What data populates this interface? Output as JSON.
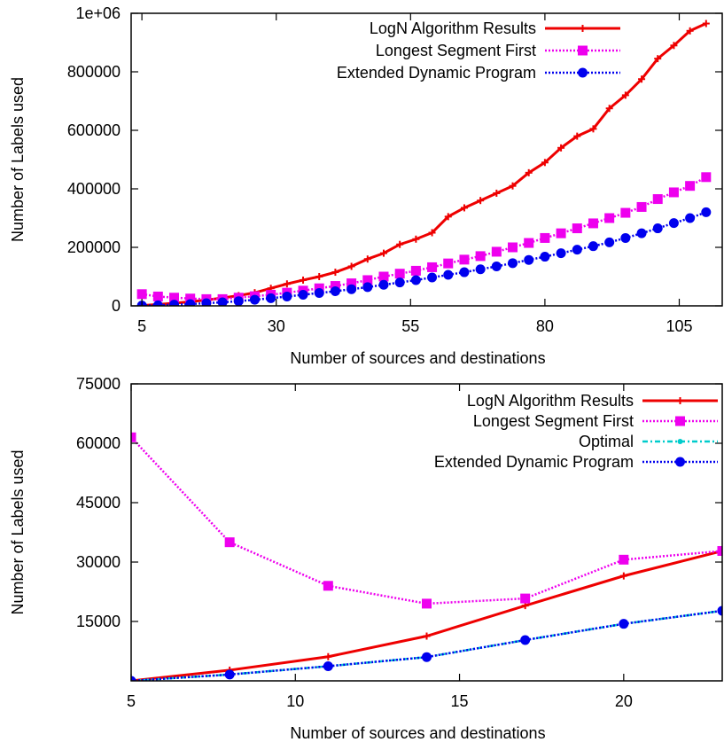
{
  "chart_data": [
    {
      "type": "line",
      "title": "",
      "xlabel": "Number of sources and destinations",
      "ylabel": "Number of Labels used",
      "xlim": [
        3,
        113
      ],
      "ylim": [
        0,
        1000000
      ],
      "xticks": [
        5,
        30,
        55,
        80,
        105
      ],
      "yticks": [
        0,
        200000,
        400000,
        600000,
        800000,
        1000000
      ],
      "ytick_labels": [
        "0",
        "200000",
        "400000",
        "600000",
        "800000",
        "1e+06"
      ],
      "grid": false,
      "legend_position": "top-right",
      "series": [
        {
          "name": "LogN Algorithm Results",
          "color": "#ee0000",
          "marker": "plus",
          "line": "solid",
          "x": [
            5,
            8,
            11,
            14,
            17,
            20,
            23,
            26,
            29,
            32,
            35,
            38,
            41,
            44,
            47,
            50,
            53,
            56,
            59,
            62,
            65,
            68,
            71,
            74,
            77,
            80,
            83,
            86,
            89,
            92,
            95,
            98,
            101,
            104,
            107,
            110
          ],
          "y": [
            1000,
            5000,
            9000,
            14000,
            20000,
            27000,
            35000,
            45000,
            60000,
            75000,
            88000,
            100000,
            115000,
            135000,
            160000,
            180000,
            210000,
            228000,
            250000,
            305000,
            335000,
            360000,
            385000,
            410000,
            455000,
            490000,
            540000,
            580000,
            605000,
            675000,
            720000,
            775000,
            845000,
            890000,
            940000,
            965000
          ]
        },
        {
          "name": "Longest Segment First",
          "color": "#ee00ee",
          "marker": "square",
          "line": "dotted",
          "x": [
            5,
            8,
            11,
            14,
            17,
            20,
            23,
            26,
            29,
            32,
            35,
            38,
            41,
            44,
            47,
            50,
            53,
            56,
            59,
            62,
            65,
            68,
            71,
            74,
            77,
            80,
            83,
            86,
            89,
            92,
            95,
            98,
            101,
            104,
            107,
            110
          ],
          "y": [
            40000,
            32000,
            28000,
            25000,
            23000,
            23000,
            28000,
            33000,
            38000,
            45000,
            52000,
            60000,
            68000,
            77000,
            88000,
            100000,
            110000,
            120000,
            132000,
            145000,
            158000,
            170000,
            185000,
            200000,
            215000,
            232000,
            248000,
            265000,
            282000,
            300000,
            318000,
            338000,
            365000,
            388000,
            410000,
            440000
          ]
        },
        {
          "name": "Extended Dynamic Program",
          "color": "#0000ee",
          "marker": "circle",
          "line": "dotted",
          "x": [
            5,
            8,
            11,
            14,
            17,
            20,
            23,
            26,
            29,
            32,
            35,
            38,
            41,
            44,
            47,
            50,
            53,
            56,
            59,
            62,
            65,
            68,
            71,
            74,
            77,
            80,
            83,
            86,
            89,
            92,
            95,
            98,
            101,
            104,
            107,
            110
          ],
          "y": [
            1000,
            2000,
            4000,
            6000,
            9000,
            12000,
            16000,
            21000,
            26000,
            32000,
            38000,
            44000,
            50000,
            57000,
            64000,
            72000,
            80000,
            88000,
            97000,
            106000,
            115000,
            125000,
            135000,
            146000,
            157000,
            168000,
            180000,
            192000,
            204000,
            217000,
            232000,
            248000,
            265000,
            283000,
            300000,
            320000
          ]
        }
      ]
    },
    {
      "type": "line",
      "title": "",
      "xlabel": "Number of sources and destinations",
      "ylabel": "Number of Labels used",
      "xlim": [
        5,
        23
      ],
      "ylim": [
        0,
        75000
      ],
      "xticks": [
        5,
        10,
        15,
        20
      ],
      "yticks": [
        15000,
        30000,
        45000,
        60000,
        75000
      ],
      "ytick_labels": [
        "15000",
        "30000",
        "45000",
        "60000",
        "75000"
      ],
      "grid": false,
      "legend_position": "top-right",
      "series": [
        {
          "name": "LogN Algorithm Results",
          "color": "#ee0000",
          "marker": "plus",
          "line": "solid",
          "x": [
            5,
            8,
            11,
            14,
            17,
            20,
            23
          ],
          "y": [
            0,
            2700,
            6100,
            11300,
            19000,
            26500,
            32800
          ]
        },
        {
          "name": "Longest Segment First",
          "color": "#ee00ee",
          "marker": "square",
          "line": "dotted",
          "x": [
            5,
            8,
            11,
            14,
            17,
            20,
            23
          ],
          "y": [
            61500,
            35000,
            24000,
            19500,
            20800,
            30600,
            32800
          ]
        },
        {
          "name": "Optimal",
          "color": "#00cccc",
          "marker": "dot",
          "line": "dashdot",
          "x": [
            5,
            8,
            11,
            14,
            17,
            20,
            23
          ],
          "y": [
            0,
            1600,
            3700,
            6000,
            10300,
            14400,
            17700
          ]
        },
        {
          "name": "Extended Dynamic Program",
          "color": "#0000ee",
          "marker": "circle",
          "line": "dotted",
          "x": [
            5,
            8,
            11,
            14,
            17,
            20,
            23
          ],
          "y": [
            0,
            1600,
            3700,
            6000,
            10300,
            14400,
            17700
          ]
        }
      ]
    }
  ]
}
